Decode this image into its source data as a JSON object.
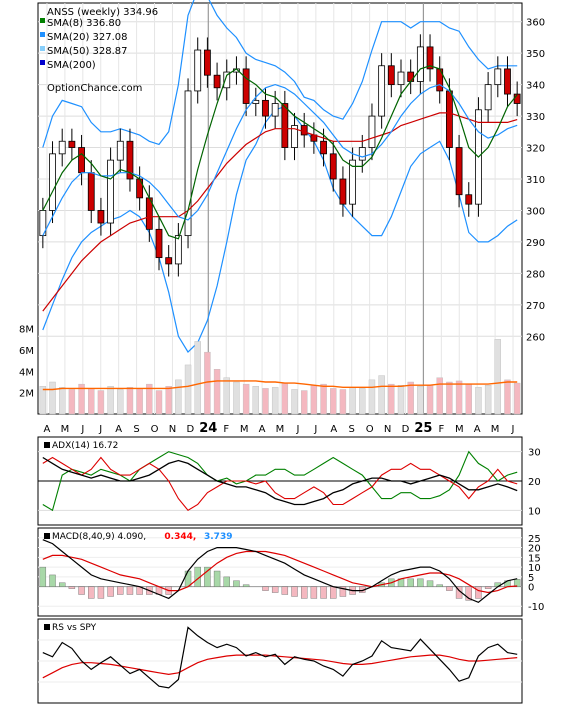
{
  "chart_data": [
    {
      "type": "candlestick",
      "title": "ANSS (weekly) 334.96",
      "watermark": "OptionChance.com",
      "x_labels": [
        "A",
        "M",
        "J",
        "J",
        "A",
        "S",
        "O",
        "N",
        "D",
        "24",
        "F",
        "M",
        "A",
        "M",
        "J",
        "J",
        "A",
        "S",
        "O",
        "N",
        "D",
        "25",
        "F",
        "M",
        "A",
        "M",
        "J"
      ],
      "ylim": [
        255,
        365
      ],
      "y_ticks": [
        "360",
        "350",
        "340",
        "330",
        "320",
        "310",
        "300",
        "290",
        "280",
        "270",
        "260"
      ],
      "legend": [
        {
          "label": "SMA(8) 336.80",
          "color": "#008000"
        },
        {
          "label": "SMA(20) 327.08",
          "color": "#1e90ff"
        },
        {
          "label": "SMA(50) 328.87",
          "color": "#87cefa"
        },
        {
          "label": "SMA(200)",
          "color": "#0000cd"
        }
      ],
      "series": [
        {
          "name": "Close",
          "values": [
            300,
            318,
            322,
            320,
            312,
            300,
            296,
            316,
            322,
            310,
            304,
            294,
            285,
            283,
            292,
            338,
            351,
            343,
            339,
            344,
            345,
            334,
            335,
            330,
            334,
            320,
            327,
            324,
            322,
            318,
            310,
            302,
            316,
            320,
            330,
            346,
            340,
            344,
            341,
            352,
            345,
            338,
            320,
            305,
            302,
            332,
            340,
            345,
            337,
            334
          ]
        },
        {
          "name": "SMA(8)",
          "values": [
            300,
            306,
            312,
            316,
            318,
            315,
            311,
            310,
            313,
            312,
            310,
            304,
            298,
            292,
            291,
            300,
            313,
            324,
            334,
            343,
            345,
            342,
            340,
            337,
            336,
            333,
            330,
            328,
            326,
            324,
            321,
            316,
            314,
            314,
            317,
            323,
            330,
            337,
            341,
            345,
            346,
            345,
            339,
            330,
            320,
            317,
            320,
            326,
            333,
            336.8
          ]
        },
        {
          "name": "SMA(20)",
          "values": [
            292,
            298,
            304,
            309,
            312,
            312,
            311,
            311,
            312,
            312,
            311,
            309,
            306,
            302,
            298,
            297,
            300,
            305,
            312,
            319,
            326,
            332,
            336,
            339,
            340,
            339,
            337,
            334,
            331,
            328,
            324,
            320,
            318,
            317,
            318,
            321,
            325,
            330,
            334,
            337,
            339,
            340,
            338,
            334,
            329,
            325,
            323,
            324,
            326,
            327.08
          ]
        },
        {
          "name": "SMA(50)",
          "values": [
            268,
            272,
            276,
            280,
            284,
            287,
            290,
            292,
            294,
            296,
            297,
            298,
            298,
            298,
            298,
            300,
            303,
            307,
            311,
            315,
            318,
            321,
            323,
            325,
            326,
            326,
            326,
            325,
            324,
            323,
            322,
            322,
            322,
            322,
            323,
            324,
            325,
            327,
            328,
            329,
            330,
            331,
            331,
            330,
            329,
            328,
            328,
            328,
            328,
            328.87
          ]
        },
        {
          "name": "Upper band",
          "values": [
            320,
            330,
            335,
            334,
            333,
            328,
            325,
            325,
            326,
            325,
            324,
            322,
            321,
            325,
            340,
            362,
            370,
            368,
            362,
            358,
            355,
            350,
            348,
            347,
            346,
            344,
            341,
            336,
            335,
            332,
            330,
            329,
            334,
            341,
            351,
            360,
            360,
            360,
            358,
            360,
            360,
            360,
            358,
            357,
            352,
            348,
            345,
            346,
            346,
            346
          ]
        },
        {
          "name": "Lower band",
          "values": [
            262,
            270,
            278,
            285,
            290,
            293,
            295,
            297,
            298,
            300,
            298,
            293,
            285,
            274,
            260,
            255,
            258,
            265,
            276,
            290,
            305,
            316,
            321,
            328,
            332,
            333,
            330,
            326,
            322,
            316,
            307,
            302,
            298,
            295,
            292,
            292,
            298,
            306,
            314,
            318,
            320,
            322,
            316,
            305,
            293,
            290,
            290,
            292,
            295,
            297
          ]
        }
      ]
    },
    {
      "type": "bar",
      "title": "",
      "y_ticks": [
        "8M",
        "6M",
        "4M",
        "2M"
      ],
      "ylim": [
        0,
        9
      ],
      "series": [
        {
          "name": "Volume",
          "values": [
            2.6,
            3.0,
            2.5,
            2.3,
            2.8,
            2.4,
            2.2,
            2.6,
            2.3,
            2.5,
            2.4,
            2.8,
            2.2,
            2.6,
            3.2,
            4.6,
            6.8,
            5.8,
            4.2,
            3.4,
            3.0,
            2.8,
            2.6,
            2.4,
            2.5,
            2.9,
            2.3,
            2.2,
            2.7,
            2.8,
            2.4,
            2.3,
            2.5,
            2.4,
            3.2,
            3.6,
            2.8,
            2.7,
            3.0,
            2.6,
            2.7,
            3.4,
            3.0,
            3.1,
            2.8,
            2.5,
            2.7,
            7.0,
            3.2,
            2.9
          ]
        },
        {
          "name": "Volume MA",
          "values": [
            2.3,
            2.3,
            2.4,
            2.4,
            2.4,
            2.4,
            2.4,
            2.4,
            2.4,
            2.4,
            2.4,
            2.4,
            2.4,
            2.4,
            2.5,
            2.6,
            2.8,
            3.0,
            3.1,
            3.1,
            3.1,
            3.1,
            3.1,
            3.0,
            3.0,
            2.9,
            2.9,
            2.8,
            2.7,
            2.6,
            2.6,
            2.5,
            2.5,
            2.5,
            2.5,
            2.6,
            2.6,
            2.6,
            2.7,
            2.7,
            2.7,
            2.8,
            2.8,
            2.8,
            2.8,
            2.8,
            2.8,
            2.9,
            3.0,
            3.0
          ]
        }
      ]
    },
    {
      "type": "line",
      "title": "ADX(14) 16.72",
      "ylim": [
        5,
        35
      ],
      "y_ticks": [
        "30",
        "20",
        "10"
      ],
      "series": [
        {
          "name": "ADX",
          "values": [
            28,
            26,
            24,
            23,
            22,
            21,
            22,
            21,
            20,
            20,
            21,
            22,
            24,
            26,
            27,
            26,
            24,
            22,
            20,
            19,
            18,
            18,
            17,
            16,
            14,
            13,
            12,
            12,
            13,
            14,
            16,
            17,
            19,
            20,
            21,
            21,
            20,
            20,
            19,
            20,
            21,
            22,
            21,
            19,
            17,
            17,
            18,
            19,
            18,
            16.72
          ]
        },
        {
          "name": "+DI",
          "values": [
            12,
            10,
            22,
            24,
            23,
            22,
            24,
            23,
            22,
            20,
            24,
            26,
            28,
            30,
            29,
            28,
            26,
            22,
            20,
            21,
            19,
            20,
            22,
            22,
            24,
            24,
            22,
            22,
            24,
            26,
            28,
            26,
            24,
            22,
            18,
            14,
            14,
            16,
            16,
            14,
            14,
            15,
            17,
            22,
            30,
            26,
            24,
            20,
            22,
            23
          ]
        },
        {
          "name": "-DI",
          "values": [
            26,
            28,
            26,
            24,
            22,
            24,
            28,
            24,
            22,
            22,
            24,
            26,
            24,
            20,
            14,
            10,
            12,
            16,
            18,
            20,
            20,
            20,
            19,
            20,
            16,
            14,
            14,
            16,
            18,
            16,
            12,
            12,
            14,
            16,
            18,
            22,
            24,
            24,
            26,
            24,
            24,
            22,
            20,
            18,
            14,
            18,
            20,
            24,
            20,
            19
          ]
        }
      ]
    },
    {
      "type": "bar",
      "title": "MACD(8,40,9) 4.090, 0.344, 3.739",
      "ylim": [
        -15,
        30
      ],
      "y_ticks": [
        "25",
        "20",
        "15",
        "10",
        "5",
        "0",
        "-10"
      ],
      "legend": [
        {
          "label": "MACD(8,40,9) 4.090,",
          "color": "#000000"
        },
        {
          "label": "0.344,",
          "color": "#ff0000"
        },
        {
          "label": "3.739",
          "color": "#1e90ff"
        }
      ],
      "series": [
        {
          "name": "MACD",
          "values": [
            24,
            22,
            18,
            14,
            10,
            6,
            4,
            3,
            2,
            1,
            0,
            -2,
            -4,
            -6,
            -2,
            8,
            14,
            18,
            20,
            20,
            20,
            19,
            18,
            16,
            14,
            12,
            9,
            6,
            4,
            2,
            0,
            -1,
            -2,
            -2,
            0,
            3,
            6,
            8,
            9,
            10,
            10,
            8,
            4,
            -2,
            -6,
            -8,
            -4,
            0,
            3,
            4.09
          ]
        },
        {
          "name": "Signal",
          "values": [
            14,
            16,
            16,
            15,
            14,
            12,
            10,
            8,
            6,
            5,
            4,
            2,
            0,
            -2,
            -2,
            0,
            4,
            8,
            12,
            15,
            17,
            18,
            18,
            18,
            17,
            16,
            14,
            12,
            10,
            8,
            6,
            4,
            2,
            1,
            0,
            1,
            2,
            4,
            5,
            6,
            7,
            7,
            6,
            4,
            1,
            -2,
            -3,
            -2,
            0,
            0.344
          ]
        },
        {
          "name": "Histogram",
          "values": [
            10,
            6,
            2,
            -1,
            -4,
            -6,
            -6,
            -5,
            -4,
            -4,
            -4,
            -4,
            -4,
            -4,
            0,
            8,
            10,
            10,
            8,
            5,
            3,
            1,
            0,
            -2,
            -3,
            -4,
            -5,
            -6,
            -6,
            -6,
            -6,
            -5,
            -4,
            -3,
            0,
            2,
            4,
            4,
            4,
            4,
            3,
            1,
            -2,
            -6,
            -7,
            -6,
            -1,
            2,
            3,
            3.739
          ]
        }
      ]
    },
    {
      "type": "line",
      "title": "RS vs SPY",
      "ylim": [
        0,
        100
      ],
      "series": [
        {
          "name": "RS",
          "values": [
            60,
            55,
            72,
            65,
            50,
            40,
            48,
            55,
            45,
            35,
            40,
            30,
            20,
            18,
            28,
            90,
            80,
            72,
            66,
            70,
            66,
            56,
            60,
            55,
            58,
            46,
            55,
            52,
            50,
            44,
            40,
            32,
            46,
            50,
            56,
            74,
            66,
            64,
            62,
            76,
            64,
            52,
            40,
            26,
            30,
            56,
            66,
            70,
            60,
            58
          ]
        },
        {
          "name": "RS MA",
          "values": [
            30,
            36,
            42,
            46,
            48,
            48,
            47,
            46,
            44,
            42,
            40,
            38,
            36,
            34,
            36,
            42,
            48,
            52,
            54,
            56,
            57,
            57,
            57,
            57,
            56,
            55,
            54,
            53,
            52,
            51,
            49,
            47,
            46,
            46,
            47,
            49,
            51,
            53,
            55,
            56,
            57,
            57,
            55,
            52,
            50,
            50,
            51,
            52,
            53,
            54
          ]
        }
      ]
    }
  ]
}
